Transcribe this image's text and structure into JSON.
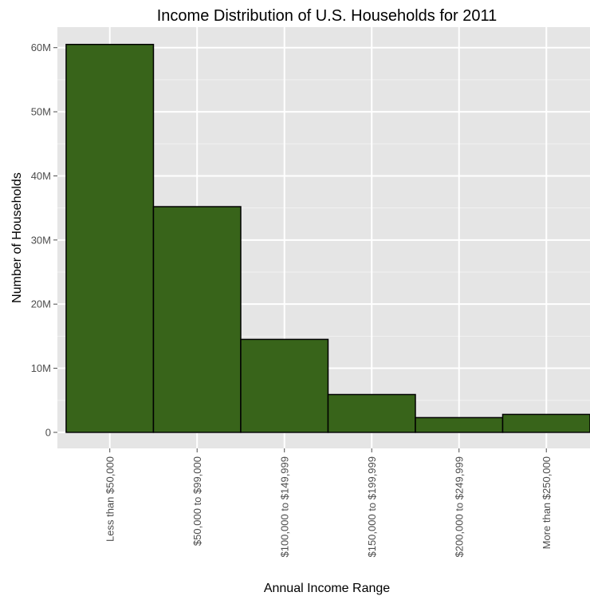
{
  "chart_data": {
    "type": "bar",
    "title": "Income Distribution of U.S. Households for 2011",
    "xlabel": "Annual Income Range",
    "ylabel": "Number of Households",
    "categories": [
      "Less than $50,000",
      "$50,000 to $99,000",
      "$100,000 to $149,999",
      "$150,000 to $199,999",
      "$200,000 to $249,999",
      "More than $250,000"
    ],
    "values": [
      60500000,
      35200000,
      14500000,
      5900000,
      2300000,
      2800000
    ],
    "ylim": [
      -2500000,
      63200000
    ],
    "yticks": [
      0,
      10000000,
      20000000,
      30000000,
      40000000,
      50000000,
      60000000
    ],
    "ytick_labels": [
      "0",
      "10M",
      "20M",
      "30M",
      "40M",
      "50M",
      "60M"
    ],
    "grid": true,
    "colors": {
      "bar_fill": "#38641a",
      "bar_stroke": "#000000",
      "panel_background": "#e5e5e5",
      "grid_major": "#ffffff",
      "grid_minor": "#f2f2f2"
    }
  }
}
